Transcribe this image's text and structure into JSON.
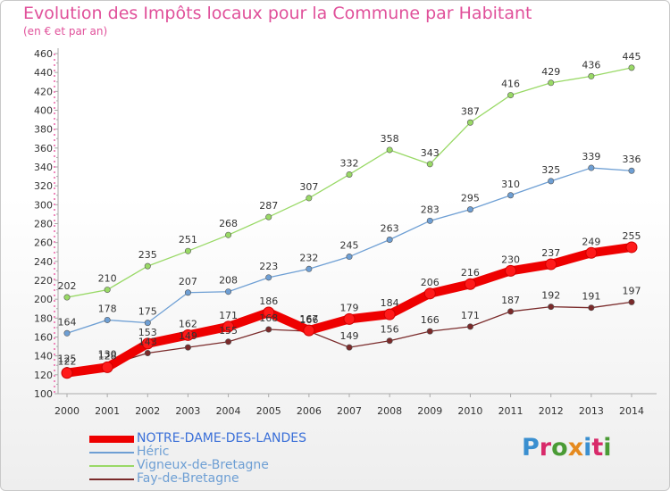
{
  "header": {
    "title": "Evolution des Impôts locaux pour la Commune par Habitant",
    "subtitle": "(en € et par an)"
  },
  "logo": {
    "text": "Proxiti",
    "colors": [
      "#3a8fd0",
      "#d82a6a",
      "#4a9b35",
      "#e58a1f",
      "#3a8fd0",
      "#d82a6a",
      "#4a9b35"
    ]
  },
  "chart_data": {
    "type": "line",
    "title": "Evolution des Impôts locaux pour la Commune par Habitant",
    "subtitle": "(en € et par an)",
    "xlabel": "",
    "ylabel": "",
    "x": [
      "2000",
      "2001",
      "2002",
      "2003",
      "2004",
      "2005",
      "2006",
      "2007",
      "2008",
      "2009",
      "2010",
      "2011",
      "2012",
      "2013",
      "2014"
    ],
    "ylim": [
      100,
      460
    ],
    "yticks": [
      100,
      120,
      140,
      160,
      180,
      200,
      220,
      240,
      260,
      280,
      300,
      320,
      340,
      360,
      380,
      400,
      420,
      440,
      460
    ],
    "grid": false,
    "legend_position": "bottom-left",
    "series": [
      {
        "name": "NOTRE-DAME-DES-LANDES",
        "color": "#ee0000",
        "emphasis": true,
        "values": [
          122,
          128,
          153,
          162,
          171,
          186,
          167,
          179,
          184,
          206,
          216,
          230,
          237,
          249,
          255
        ],
        "labels": [
          "122",
          "128",
          "153",
          "162",
          "171",
          "186",
          "167",
          "179",
          "184",
          "206",
          "216",
          "230",
          "237",
          "249",
          "255"
        ]
      },
      {
        "name": "Héric",
        "color": "#6e9fd4",
        "emphasis": false,
        "values": [
          164,
          178,
          175,
          207,
          208,
          223,
          232,
          245,
          263,
          283,
          295,
          310,
          325,
          339,
          336
        ],
        "labels": [
          "164",
          "178",
          "175",
          "207",
          "208",
          "223",
          "232",
          "245",
          "263",
          "283",
          "295",
          "310",
          "325",
          "339",
          "336"
        ]
      },
      {
        "name": "Vigneux-de-Bretagne",
        "color": "#99d966",
        "emphasis": false,
        "values": [
          202,
          210,
          235,
          251,
          268,
          287,
          307,
          332,
          358,
          343,
          387,
          416,
          429,
          436,
          445
        ],
        "labels": [
          "202",
          "210",
          "235",
          "251",
          "268",
          "287",
          "307",
          "332",
          "358",
          "343",
          "387",
          "416",
          "429",
          "436",
          "445"
        ]
      },
      {
        "name": "Fay-de-Bretagne",
        "color": "#7a2a2a",
        "emphasis": false,
        "values": [
          125,
          130,
          143,
          149,
          155,
          168,
          166,
          149,
          156,
          166,
          171,
          187,
          192,
          191,
          197
        ],
        "labels": [
          "125",
          "130",
          "143",
          "149",
          "155",
          "168",
          "166",
          "149",
          "156",
          "166",
          "171",
          "187",
          "192",
          "191",
          "197"
        ]
      }
    ]
  }
}
